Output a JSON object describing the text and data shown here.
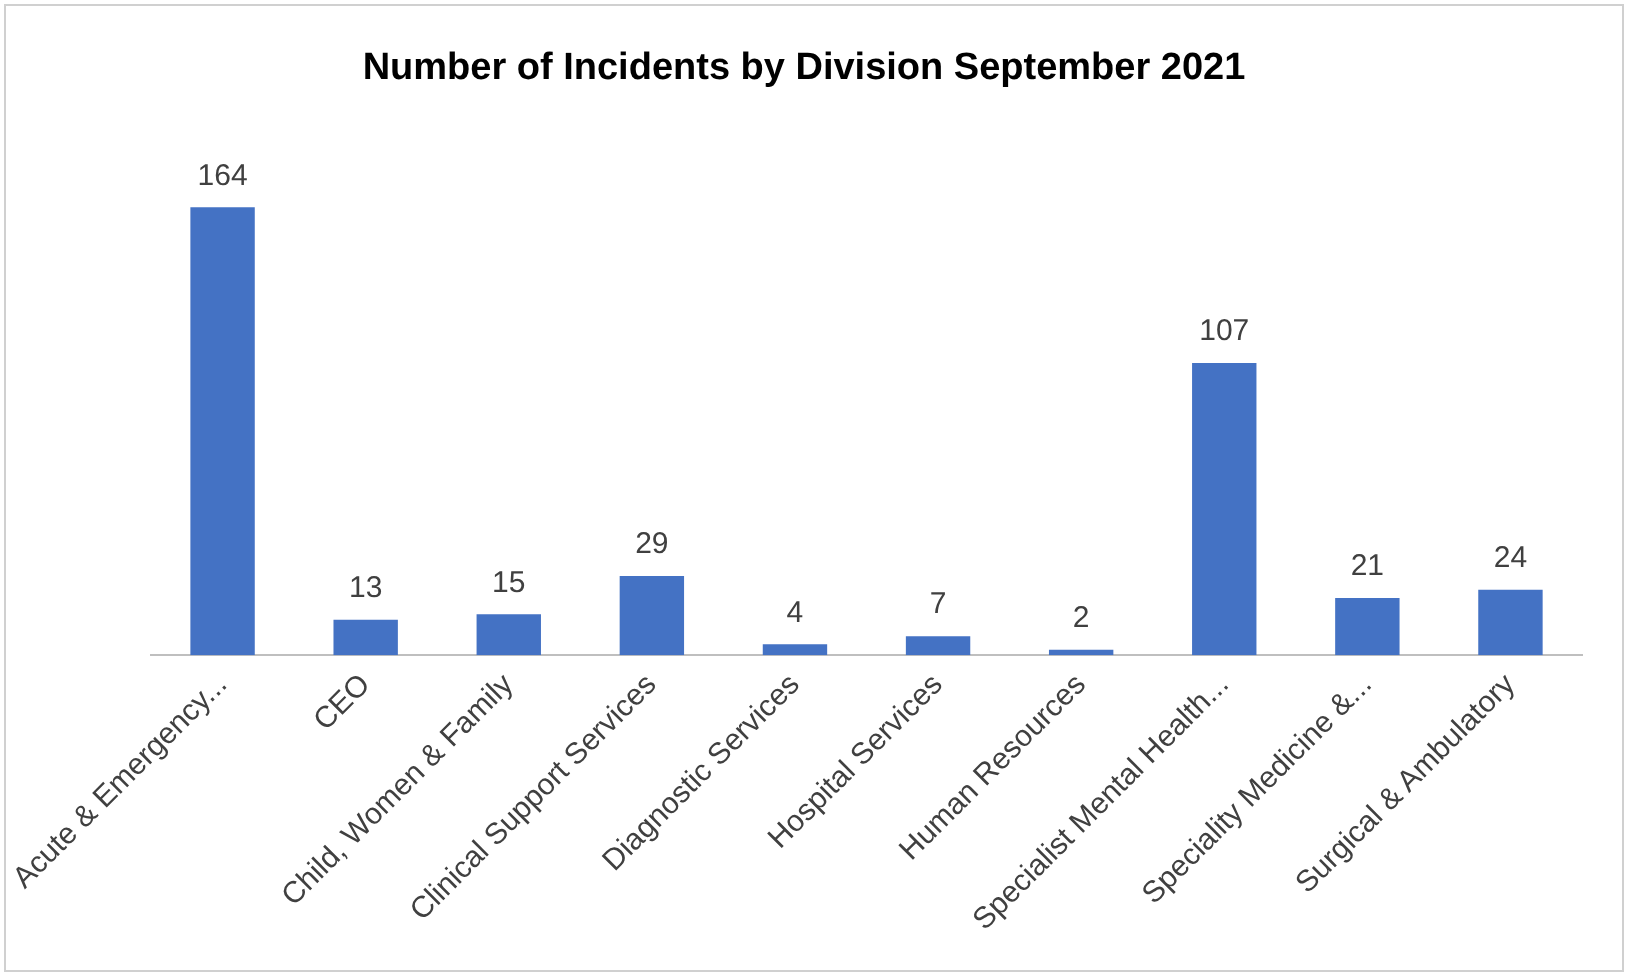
{
  "chart_data": {
    "type": "bar",
    "title": "Number of Incidents by Division September 2021",
    "categories": [
      "Acute & Emergency...",
      "CEO",
      "Child, Women & Family",
      "Clinical Support Services",
      "Diagnostic Services",
      "Hospital Services",
      "Human Resources",
      "Specialist Mental Health...",
      "Speciality Medicine &...",
      "Surgical & Ambulatory"
    ],
    "values": [
      164,
      13,
      15,
      29,
      4,
      7,
      2,
      107,
      21,
      24
    ],
    "color": "#4472c4",
    "data_labels": true,
    "grid": false,
    "legend": false
  }
}
